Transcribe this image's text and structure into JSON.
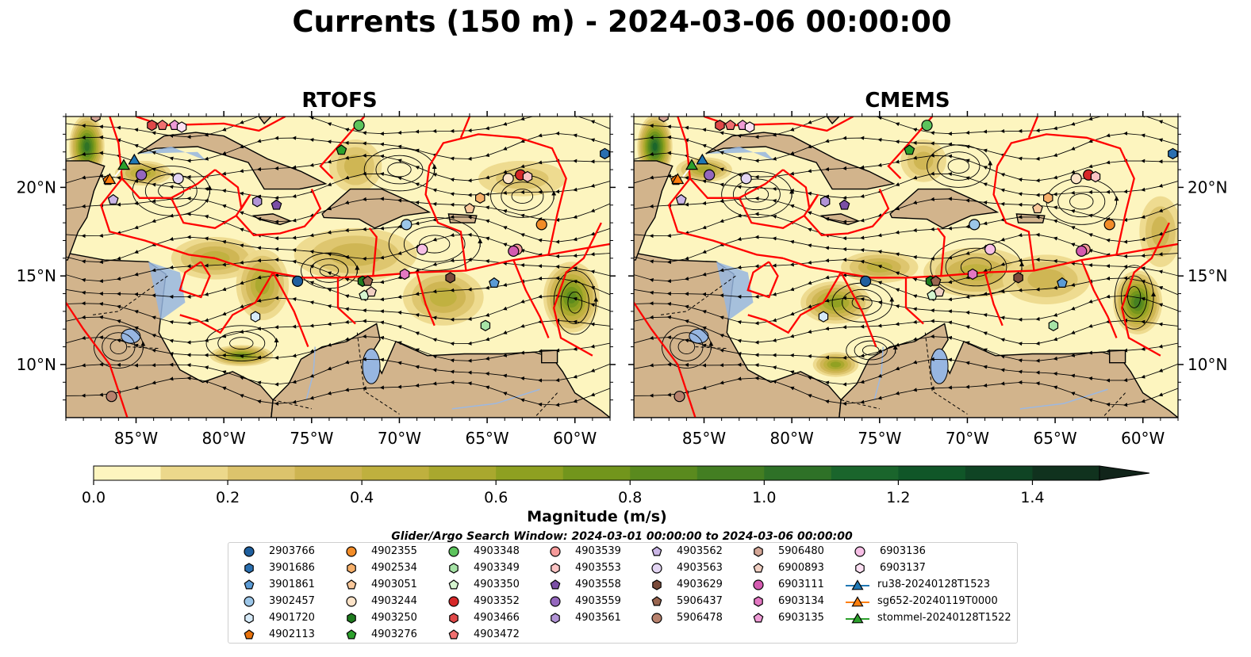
{
  "title": "Currents (150 m) - 2024-03-06 00:00:00",
  "panels": [
    {
      "title": "RTOFS"
    },
    {
      "title": "CMEMS"
    }
  ],
  "chart_data": {
    "type": "heatmap",
    "description_source": "two-panel map of ocean current magnitude with streamlines",
    "map_extent": {
      "lon": [
        -89,
        -58
      ],
      "lat": [
        7,
        24
      ]
    },
    "x_ticks": [
      "85°W",
      "80°W",
      "75°W",
      "70°W",
      "65°W",
      "60°W"
    ],
    "x_tick_values": [
      -85,
      -80,
      -75,
      -70,
      -65,
      -60
    ],
    "y_ticks": [
      "10°N",
      "15°N",
      "20°N"
    ],
    "y_tick_values": [
      10,
      15,
      20
    ],
    "colorbar": {
      "label": "Magnitude (m/s)",
      "min": 0.0,
      "max": 1.5,
      "step": 0.1,
      "extend": "max",
      "ticks": [
        "0.0",
        "0.2",
        "0.4",
        "0.6",
        "0.8",
        "1.0",
        "1.2",
        "1.4"
      ],
      "tick_values": [
        0.0,
        0.2,
        0.4,
        0.6,
        0.8,
        1.0,
        1.2,
        1.4
      ],
      "colors": [
        "#fdf5bf",
        "#ecd88b",
        "#dcc36c",
        "#cdb451",
        "#bfb03e",
        "#a9a82e",
        "#8ea021",
        "#72951c",
        "#5a8a1e",
        "#437e22",
        "#2e7127",
        "#1a652c",
        "#105628",
        "#0f4424",
        "#10321e",
        "#11241a"
      ]
    },
    "colors": {
      "ocean": "#97b6e1",
      "land": "#d2b48c",
      "eez_lines": "#ff0000",
      "coastline": "#000000"
    }
  },
  "legend": {
    "title": "Glider/Argo Search Window: 2024-03-01 00:00:00 to 2024-03-06 00:00:00",
    "columns": [
      [
        {
          "label": "2903766",
          "marker": "circle",
          "color": "#1f5f9e"
        },
        {
          "label": "3901686",
          "marker": "hexagon",
          "color": "#2a6fb0"
        },
        {
          "label": "3901861",
          "marker": "pentagon",
          "color": "#5b9bd5"
        },
        {
          "label": "3902457",
          "marker": "circle",
          "color": "#9cc6e8"
        },
        {
          "label": "4901720",
          "marker": "hexagon",
          "color": "#d6eaf8"
        },
        {
          "label": "4902113",
          "marker": "pentagon",
          "color": "#e8720c"
        }
      ],
      [
        {
          "label": "4902355",
          "marker": "circle",
          "color": "#f28c28"
        },
        {
          "label": "4902534",
          "marker": "hexagon",
          "color": "#f7b06a"
        },
        {
          "label": "4903051",
          "marker": "pentagon",
          "color": "#f9c89b"
        },
        {
          "label": "4903244",
          "marker": "circle",
          "color": "#fde3c8"
        },
        {
          "label": "4903250",
          "marker": "hexagon",
          "color": "#1e7b1e"
        },
        {
          "label": "4903276",
          "marker": "pentagon",
          "color": "#2ca02c"
        }
      ],
      [
        {
          "label": "4903348",
          "marker": "circle",
          "color": "#5cc35c"
        },
        {
          "label": "4903349",
          "marker": "hexagon",
          "color": "#a6e3a6"
        },
        {
          "label": "4903350",
          "marker": "pentagon",
          "color": "#d6f5d0"
        },
        {
          "label": "4903352",
          "marker": "circle",
          "color": "#d62728"
        },
        {
          "label": "4903466",
          "marker": "hexagon",
          "color": "#e04848"
        },
        {
          "label": "4903472",
          "marker": "pentagon",
          "color": "#f07070"
        }
      ],
      [
        {
          "label": "4903539",
          "marker": "circle",
          "color": "#f59a9a"
        },
        {
          "label": "4903553",
          "marker": "hexagon",
          "color": "#fbc4c4"
        },
        {
          "label": "4903558",
          "marker": "pentagon",
          "color": "#7b4fa6"
        },
        {
          "label": "4903559",
          "marker": "circle",
          "color": "#9467bd"
        },
        {
          "label": "4903561",
          "marker": "hexagon",
          "color": "#b294d6"
        }
      ],
      [
        {
          "label": "4903562",
          "marker": "pentagon",
          "color": "#cbb6e6"
        },
        {
          "label": "4903563",
          "marker": "circle",
          "color": "#e3d5f3"
        },
        {
          "label": "4903629",
          "marker": "hexagon",
          "color": "#7a4a3a"
        },
        {
          "label": "5906437",
          "marker": "pentagon",
          "color": "#9a6650"
        },
        {
          "label": "5906478",
          "marker": "circle",
          "color": "#b8826e"
        }
      ],
      [
        {
          "label": "5906480",
          "marker": "hexagon",
          "color": "#d4a696"
        },
        {
          "label": "6900893",
          "marker": "pentagon",
          "color": "#f0cfc2"
        },
        {
          "label": "6903111",
          "marker": "circle",
          "color": "#d45bb0"
        },
        {
          "label": "6903134",
          "marker": "hexagon",
          "color": "#e377c2"
        },
        {
          "label": "6903135",
          "marker": "pentagon",
          "color": "#ef9bd6"
        }
      ],
      [
        {
          "label": "6903136",
          "marker": "circle",
          "color": "#f7bfe6"
        },
        {
          "label": "6903137",
          "marker": "hexagon",
          "color": "#fde0f3"
        },
        {
          "label": "ru38-20240128T1523",
          "marker": "triangle-line",
          "color": "#1f77b4"
        },
        {
          "label": "sg652-20240119T0000",
          "marker": "triangle-line",
          "color": "#ff7f0e"
        },
        {
          "label": "stommel-20240128T1522",
          "marker": "triangle-line",
          "color": "#2ca02c"
        }
      ]
    ]
  },
  "floats": [
    {
      "label": "2903766",
      "lon": -75.8,
      "lat": 14.7
    },
    {
      "label": "3901686",
      "lon": -58.3,
      "lat": 21.9
    },
    {
      "label": "3901861",
      "lon": -64.6,
      "lat": 14.6
    },
    {
      "label": "3902457",
      "lon": -69.6,
      "lat": 17.9
    },
    {
      "label": "4901720",
      "lon": -78.2,
      "lat": 12.7
    },
    {
      "label": "4902113",
      "lon": -86.6,
      "lat": 20.4
    },
    {
      "label": "4902355",
      "lon": -61.9,
      "lat": 17.9
    },
    {
      "label": "4902534",
      "lon": -65.4,
      "lat": 19.4
    },
    {
      "label": "4903051",
      "lon": -66.0,
      "lat": 18.8
    },
    {
      "label": "4903244",
      "lon": -63.8,
      "lat": 20.5
    },
    {
      "label": "4903250",
      "lon": -72.1,
      "lat": 14.7
    },
    {
      "label": "4903276",
      "lon": -73.3,
      "lat": 22.1
    },
    {
      "label": "4903348",
      "lon": -72.3,
      "lat": 23.5
    },
    {
      "label": "4903349",
      "lon": -65.1,
      "lat": 12.2
    },
    {
      "label": "4903350",
      "lon": -72.0,
      "lat": 13.9
    },
    {
      "label": "4903352",
      "lon": -63.1,
      "lat": 20.7
    },
    {
      "label": "4903466",
      "lon": -84.1,
      "lat": 23.5
    },
    {
      "label": "4903472",
      "lon": -83.5,
      "lat": 23.5
    },
    {
      "label": "4903539",
      "lon": -63.3,
      "lat": 16.5
    },
    {
      "label": "4903553",
      "lon": -62.7,
      "lat": 20.6
    },
    {
      "label": "4903558",
      "lon": -77.0,
      "lat": 19.0
    },
    {
      "label": "4903559",
      "lon": -84.7,
      "lat": 20.7
    },
    {
      "label": "4903561",
      "lon": -78.1,
      "lat": 19.2
    },
    {
      "label": "4903562",
      "lon": -86.3,
      "lat": 19.3
    },
    {
      "label": "4903563",
      "lon": -82.6,
      "lat": 20.5
    },
    {
      "label": "4903629",
      "lon": -67.1,
      "lat": 14.9
    },
    {
      "label": "5906437",
      "lon": -71.8,
      "lat": 14.7
    },
    {
      "label": "5906478",
      "lon": -86.4,
      "lat": 8.2
    },
    {
      "label": "5906480",
      "lon": -87.3,
      "lat": 24.0
    },
    {
      "label": "6900893",
      "lon": -71.6,
      "lat": 14.1
    },
    {
      "label": "6903111",
      "lon": -63.5,
      "lat": 16.4
    },
    {
      "label": "6903134",
      "lon": -69.7,
      "lat": 15.1
    },
    {
      "label": "6903135",
      "lon": -82.8,
      "lat": 23.5
    },
    {
      "label": "6903136",
      "lon": -68.7,
      "lat": 16.5
    },
    {
      "label": "6903137",
      "lon": -82.4,
      "lat": 23.4
    }
  ],
  "gliders": [
    {
      "label": "ru38-20240128T1523",
      "lon": -85.1,
      "lat": 21.5
    },
    {
      "label": "sg652-20240119T0000",
      "lon": -86.5,
      "lat": 20.4
    },
    {
      "label": "stommel-20240128T1522",
      "lon": -85.7,
      "lat": 21.2
    }
  ]
}
